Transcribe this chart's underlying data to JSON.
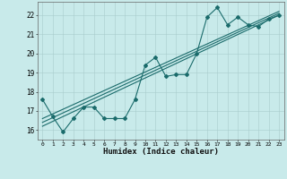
{
  "title": "",
  "xlabel": "Humidex (Indice chaleur)",
  "ylabel": "",
  "bg_color": "#c8eaea",
  "line_color": "#1a6b6b",
  "xlim": [
    -0.5,
    23.5
  ],
  "ylim": [
    15.5,
    22.7
  ],
  "yticks": [
    16,
    17,
    18,
    19,
    20,
    21,
    22
  ],
  "xticks": [
    0,
    1,
    2,
    3,
    4,
    5,
    6,
    7,
    8,
    9,
    10,
    11,
    12,
    13,
    14,
    15,
    16,
    17,
    18,
    19,
    20,
    21,
    22,
    23
  ],
  "series1_x": [
    0,
    1,
    2,
    3,
    4,
    5,
    6,
    7,
    8,
    9,
    10,
    11,
    12,
    13,
    14,
    15,
    16,
    17,
    18,
    19,
    20,
    21,
    22,
    23
  ],
  "series1_y": [
    17.6,
    16.7,
    15.9,
    16.6,
    17.2,
    17.2,
    16.6,
    16.6,
    16.6,
    17.6,
    19.4,
    19.8,
    18.8,
    18.9,
    18.9,
    20.0,
    21.9,
    22.4,
    21.5,
    21.9,
    21.5,
    21.4,
    21.8,
    22.0
  ],
  "series2_x": [
    0,
    23
  ],
  "series2_y": [
    16.2,
    22.0
  ],
  "series3_x": [
    0,
    23
  ],
  "series3_y": [
    16.4,
    22.1
  ],
  "series4_x": [
    0,
    23
  ],
  "series4_y": [
    16.6,
    22.2
  ]
}
